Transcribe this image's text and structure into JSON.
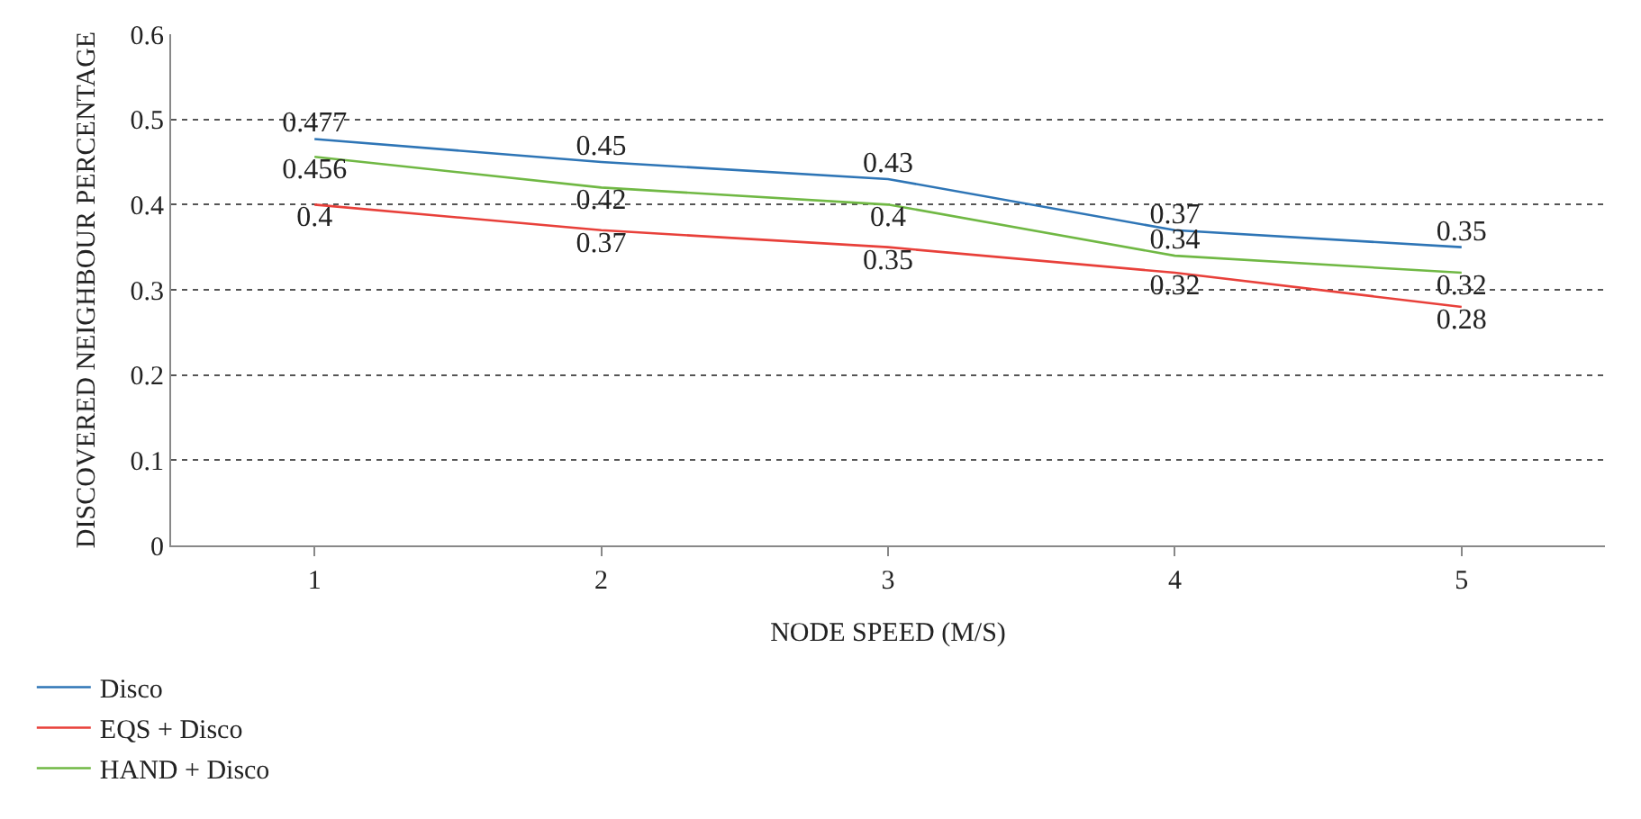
{
  "chart_data": {
    "type": "line",
    "xlabel": "NODE SPEED (M/S)",
    "ylabel": "DISCOVERED NEIGHBOUR PERCENTAGE",
    "categories": [
      "1",
      "2",
      "3",
      "4",
      "5"
    ],
    "series": [
      {
        "name": "Disco",
        "color": "#2e75b6",
        "values": [
          0.477,
          0.45,
          0.43,
          0.37,
          0.35
        ]
      },
      {
        "name": "EQS + Disco",
        "color": "#e8403a",
        "values": [
          0.4,
          0.37,
          0.35,
          0.32,
          0.28
        ]
      },
      {
        "name": "HAND + Disco",
        "color": "#70b844",
        "values": [
          0.456,
          0.42,
          0.4,
          0.34,
          0.32
        ]
      }
    ],
    "ylim": [
      0,
      0.6
    ],
    "yticks": [
      0,
      0.1,
      0.2,
      0.3,
      0.4,
      0.5,
      0.6
    ],
    "grid": "y",
    "legend": "bottom left",
    "data_labels": true,
    "marker": "none",
    "line_style": "solid"
  }
}
